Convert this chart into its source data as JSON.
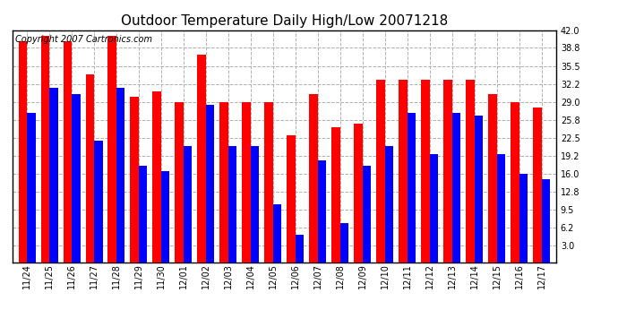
{
  "title": "Outdoor Temperature Daily High/Low 20071218",
  "copyright": "Copyright 2007 Cartronics.com",
  "dates": [
    "11/24",
    "11/25",
    "11/26",
    "11/27",
    "11/28",
    "11/29",
    "11/30",
    "12/01",
    "12/02",
    "12/03",
    "12/04",
    "12/05",
    "12/06",
    "12/07",
    "12/08",
    "12/09",
    "12/10",
    "12/11",
    "12/12",
    "12/13",
    "12/14",
    "12/15",
    "12/16",
    "12/17"
  ],
  "highs": [
    40.0,
    41.0,
    40.0,
    34.0,
    41.0,
    30.0,
    31.0,
    29.0,
    37.5,
    29.0,
    29.0,
    29.0,
    23.0,
    30.5,
    24.5,
    25.0,
    33.0,
    33.0,
    33.0,
    33.0,
    33.0,
    30.5,
    29.0,
    28.0
  ],
  "lows": [
    27.0,
    31.5,
    30.5,
    22.0,
    31.5,
    17.5,
    16.5,
    21.0,
    28.5,
    21.0,
    21.0,
    10.5,
    5.0,
    18.5,
    7.0,
    17.5,
    21.0,
    27.0,
    19.5,
    27.0,
    26.5,
    19.5,
    16.0,
    15.0
  ],
  "high_color": "#ff0000",
  "low_color": "#0000ff",
  "bg_color": "#ffffff",
  "grid_color": "#b0b0b0",
  "yticks": [
    3.0,
    6.2,
    9.5,
    12.8,
    16.0,
    19.2,
    22.5,
    25.8,
    29.0,
    32.2,
    35.5,
    38.8,
    42.0
  ],
  "ymin": 3.0,
  "ymax": 42.0,
  "bar_width": 0.38,
  "title_fontsize": 11,
  "copyright_fontsize": 7,
  "tick_fontsize": 7
}
